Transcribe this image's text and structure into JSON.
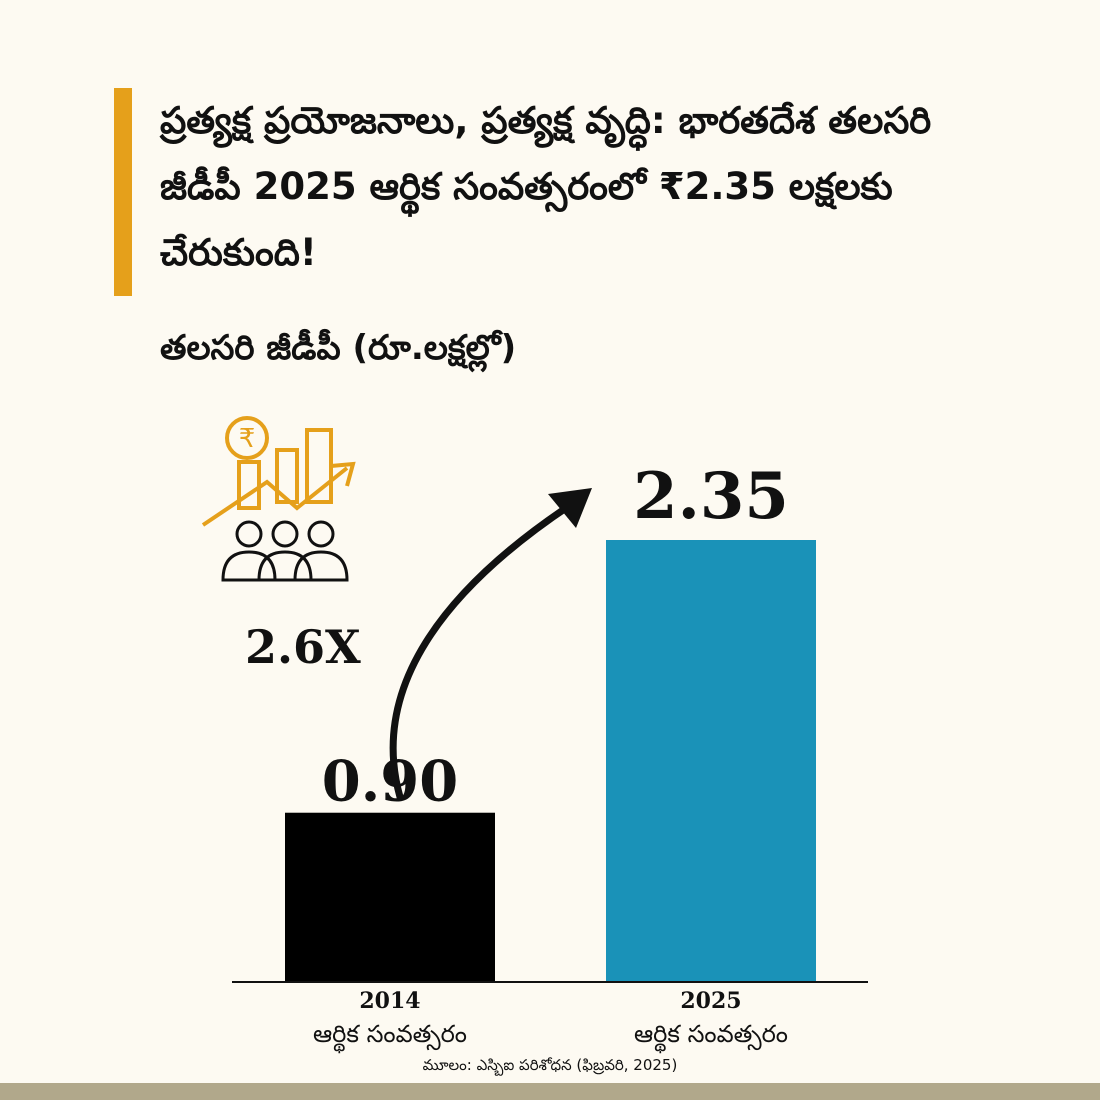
{
  "header": {
    "title": "ప్రత్యక్ష ప్రయోజనాలు, ప్రత్యక్ష వృద్ధి: భారతదేశ తలసరి జీడీపీ 2025 ఆర్థిక సంవత్సరంలో ₹2.35 లక్షలకు చేరుకుంది!",
    "subtitle": "తలసరి జీడీపీ  (రూ.లక్షల్లో)"
  },
  "annotation": {
    "multiplier": "2.6X"
  },
  "source": "మూలం: ఎస్బిఐ పరిశోధన (ఫిబ్రవరి, 2025)",
  "icon": {
    "name": "rupee-growth-people-icon",
    "color": "#e5a01b"
  },
  "colors": {
    "accent": "#e5a01b",
    "bar_2014": "#000000",
    "bar_2025": "#1a92b8",
    "background": "#fdfaf2"
  },
  "chart_data": {
    "type": "bar",
    "categories": [
      "2014\nఆర్థిక సంవత్సరం",
      "2025\nఆర్థిక సంవత్సరం"
    ],
    "category_years": [
      "2014",
      "2025"
    ],
    "category_sublabel": "ఆర్థిక సంవత్సరం",
    "values": [
      0.9,
      2.35
    ],
    "value_labels": [
      "0.90",
      "2.35"
    ],
    "bar_colors": [
      "#000000",
      "#1a92b8"
    ],
    "ylim": [
      0,
      2.35
    ],
    "grid": false,
    "title": "",
    "xlabel": "",
    "ylabel": ""
  }
}
